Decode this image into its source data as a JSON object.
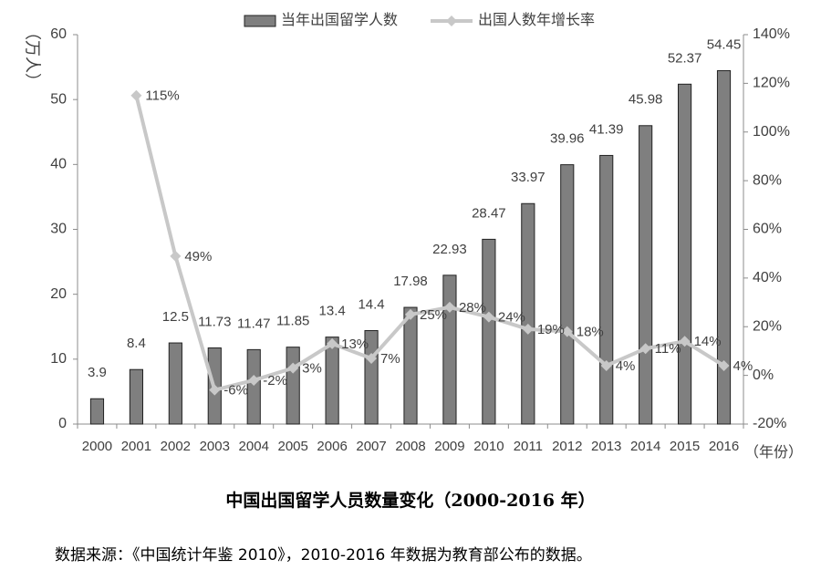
{
  "chart_data": {
    "type": "bar",
    "title": "",
    "categories": [
      "2000",
      "2001",
      "2002",
      "2003",
      "2004",
      "2005",
      "2006",
      "2007",
      "2008",
      "2009",
      "2010",
      "2011",
      "2012",
      "2013",
      "2014",
      "2015",
      "2016"
    ],
    "series": [
      {
        "name": "当年出国留学人数",
        "type": "bar",
        "axis": "left",
        "color": "#7f7f7f",
        "values": [
          3.9,
          8.4,
          12.5,
          11.73,
          11.47,
          11.85,
          13.4,
          14.4,
          17.98,
          22.93,
          28.47,
          33.97,
          39.96,
          41.39,
          45.98,
          52.37,
          54.45
        ],
        "labels": [
          "3.9",
          "8.4",
          "12.5",
          "11.73",
          "11.47",
          "11.85",
          "13.4",
          "14.4",
          "17.98",
          "22.93",
          "28.47",
          "33.97",
          "39.96",
          "41.39",
          "45.98",
          "52.37",
          "54.45"
        ]
      },
      {
        "name": "出国人数年增长率",
        "type": "line",
        "axis": "right",
        "color": "#c8c8c8",
        "values": [
          null,
          115,
          49,
          -6,
          -2,
          3,
          13,
          7,
          25,
          28,
          24,
          19,
          18,
          4,
          11,
          14,
          4
        ],
        "labels": [
          null,
          "115%",
          "49%",
          "-6%",
          "-2%",
          "3%",
          "13%",
          "7%",
          "25%",
          "28%",
          "24%",
          "19%",
          "18%",
          "4%",
          "11%",
          "14%",
          "4%"
        ]
      }
    ],
    "y_left": {
      "label": "（万人）",
      "lim": [
        0,
        60
      ],
      "ticks": [
        "0",
        "10",
        "20",
        "30",
        "40",
        "50",
        "60"
      ]
    },
    "y_right": {
      "lim": [
        -20,
        140
      ],
      "ticks": [
        "-20%",
        "0%",
        "20%",
        "40%",
        "60%",
        "80%",
        "100%",
        "120%",
        "140%"
      ]
    },
    "xlabel": "（年份）",
    "legend_position": "top",
    "grid": false
  },
  "caption": "中国出国留学人员数量变化（2000-2016 年）",
  "source_note": "数据来源：《中国统计年鉴 2010》，2010-2016 年数据为教育部公布的数据。"
}
